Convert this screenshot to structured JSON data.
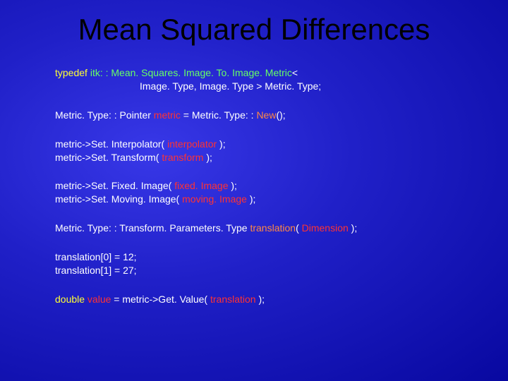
{
  "title": "Mean Squared Differences",
  "colors": {
    "background_center": "#3838e8",
    "background_edge": "#0808a0",
    "title": "#000000",
    "keyword": "#ffff33",
    "type": "#66ff66",
    "function": "#ff8844",
    "variable": "#ff3333",
    "text": "#ffffff"
  },
  "fontsize_title": 42,
  "fontsize_code": 14,
  "block1": {
    "line1_kw": "typedef",
    "line1_typ": " itk: : Mean. Squares. Image. To. Image. Metric",
    "line1_txt": "<",
    "line2_txt": "Image. Type, Image. Type >  Metric. Type;"
  },
  "block2": {
    "line1_txt1": "Metric. Type: : Pointer ",
    "line1_var": "metric",
    "line1_txt2": " = Metric. Type: : ",
    "line1_func": "New",
    "line1_txt3": "();"
  },
  "block3": {
    "line1_txt1": "metric->Set. Interpolator( ",
    "line1_var": "interpolator",
    "line1_txt2": " );",
    "line2_txt1": "metric->Set. Transform( ",
    "line2_var": "transform",
    "line2_txt2": " );"
  },
  "block4": {
    "line1_txt1": "metric->Set. Fixed. Image(  ",
    "line1_var": "fixed. Image",
    "line1_txt2": "  );",
    "line2_txt1": "metric->Set. Moving. Image( ",
    "line2_var": "moving. Image",
    "line2_txt2": " );"
  },
  "block5": {
    "line1_txt1": "Metric. Type: : Transform. Parameters. Type ",
    "line1_func": "translation",
    "line1_txt2": "( ",
    "line1_var": "Dimension",
    "line1_txt3": " );"
  },
  "block6": {
    "line1": "translation[0] = 12;",
    "line2": "translation[1] = 27;"
  },
  "block7": {
    "line1_kw": "double",
    "line1_var": " value",
    "line1_txt1": " = metric->Get. Value( ",
    "line1_var2": "translation",
    "line1_txt2": " );"
  }
}
